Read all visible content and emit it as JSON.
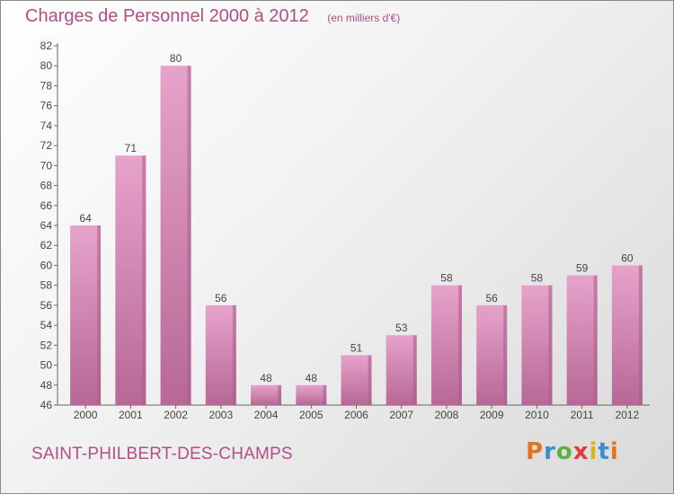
{
  "header": {
    "title": "Charges de Personnel 2000 à 2012",
    "unit": "(en milliers d'€)"
  },
  "footer": {
    "town": "SAINT-PHILBERT-DES-CHAMPS",
    "logo": "Proxiti",
    "logo_colors": [
      "#e8731f",
      "#3a8fcf",
      "#5db33f",
      "#e23a3a",
      "#d8b42a",
      "#3a8fcf",
      "#e8731f"
    ]
  },
  "colors": {
    "accent": "#b14f85",
    "bar_top": "#e6a3ca",
    "bar_bottom": "#b76896",
    "bar_side": "#a95d8a"
  },
  "chart_data": {
    "type": "bar",
    "categories": [
      "2000",
      "2001",
      "2002",
      "2003",
      "2004",
      "2005",
      "2006",
      "2007",
      "2008",
      "2009",
      "2010",
      "2011",
      "2012"
    ],
    "values": [
      64,
      71,
      80,
      56,
      48,
      48,
      51,
      53,
      58,
      56,
      58,
      59,
      60
    ],
    "ylim": [
      46,
      82
    ],
    "yticks": [
      46,
      48,
      50,
      52,
      54,
      56,
      58,
      60,
      62,
      64,
      66,
      68,
      70,
      72,
      74,
      76,
      78,
      80,
      82
    ],
    "grid": false,
    "data_labels": true
  }
}
